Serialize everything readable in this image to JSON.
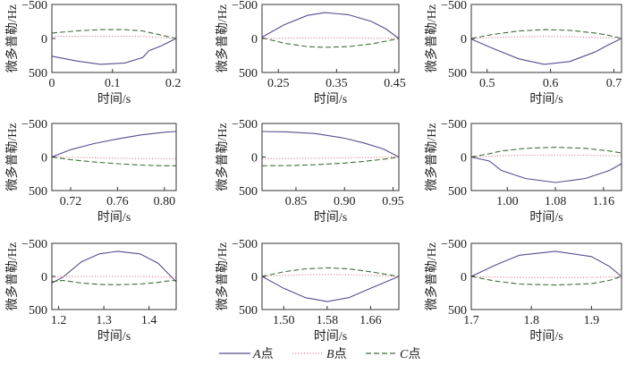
{
  "chart_data": {
    "type": "line",
    "ylabel": "微多普勒/Hz",
    "xlabel": "时间/s",
    "yticks": [
      -500,
      0,
      500
    ],
    "ytick_labels": [
      "−500",
      "0",
      "500"
    ],
    "ylim": [
      -500,
      500
    ],
    "y_inverted": true,
    "grid": false,
    "legend": {
      "placement": "bottom-center",
      "entries": [
        {
          "label": "A点",
          "italic": "A",
          "suffix": "点",
          "color": "#5b4a8f",
          "style": "solid"
        },
        {
          "label": "B点",
          "italic": "B",
          "suffix": "点",
          "color": "#d9808f",
          "style": "dotted"
        },
        {
          "label": "C点",
          "italic": "C",
          "suffix": "点",
          "color": "#3f6f3a",
          "style": "dashed"
        }
      ]
    },
    "panels": [
      {
        "xlim": [
          0,
          0.205
        ],
        "xticks": [
          0,
          0.1,
          0.2
        ],
        "xtick_labels": [
          "0",
          "0.1",
          "0.2"
        ],
        "x": [
          0,
          0.04,
          0.08,
          0.12,
          0.15,
          0.16,
          0.18,
          0.205
        ],
        "A": [
          260,
          330,
          380,
          360,
          280,
          180,
          110,
          0
        ],
        "B": [
          -30,
          -30,
          -30,
          -30,
          -30,
          -25,
          -15,
          0
        ],
        "C": [
          -80,
          -110,
          -130,
          -130,
          -110,
          -90,
          -50,
          0
        ]
      },
      {
        "xlim": [
          0.222,
          0.457
        ],
        "xticks": [
          0.25,
          0.35,
          0.45
        ],
        "xtick_labels": [
          "0.25",
          "0.35",
          "0.45"
        ],
        "x": [
          0.222,
          0.26,
          0.3,
          0.33,
          0.37,
          0.41,
          0.435,
          0.457
        ],
        "A": [
          -20,
          -200,
          -340,
          -380,
          -350,
          -250,
          -140,
          0
        ],
        "B": [
          0,
          -5,
          -8,
          -10,
          -8,
          -5,
          -2,
          0
        ],
        "C": [
          -10,
          70,
          120,
          130,
          120,
          80,
          40,
          0
        ]
      },
      {
        "xlim": [
          0.475,
          0.712
        ],
        "xticks": [
          0.5,
          0.6,
          0.7
        ],
        "xtick_labels": [
          "0.5",
          "0.6",
          "0.7"
        ],
        "x": [
          0.475,
          0.51,
          0.55,
          0.59,
          0.63,
          0.67,
          0.69,
          0.712
        ],
        "A": [
          10,
          150,
          300,
          380,
          340,
          200,
          100,
          0
        ],
        "B": [
          0,
          -15,
          -25,
          -30,
          -25,
          -15,
          -10,
          0
        ],
        "C": [
          0,
          -60,
          -110,
          -130,
          -120,
          -80,
          -50,
          0
        ]
      },
      {
        "xlim": [
          0.704,
          0.81
        ],
        "xticks": [
          0.72,
          0.76,
          0.8
        ],
        "xtick_labels": [
          "0.72",
          "0.76",
          "0.80"
        ],
        "x": [
          0.704,
          0.72,
          0.74,
          0.76,
          0.78,
          0.8,
          0.81
        ],
        "A": [
          0,
          -110,
          -200,
          -270,
          -330,
          -370,
          -380
        ],
        "B": [
          0,
          5,
          12,
          18,
          22,
          25,
          25
        ],
        "C": [
          0,
          40,
          75,
          100,
          120,
          130,
          130
        ]
      },
      {
        "xlim": [
          0.815,
          0.956
        ],
        "xticks": [
          0.85,
          0.9,
          0.95
        ],
        "xtick_labels": [
          "0.85",
          "0.90",
          "0.95"
        ],
        "x": [
          0.815,
          0.84,
          0.87,
          0.9,
          0.92,
          0.94,
          0.956
        ],
        "A": [
          -380,
          -375,
          -350,
          -280,
          -210,
          -120,
          0
        ],
        "B": [
          25,
          22,
          18,
          12,
          8,
          5,
          0
        ],
        "C": [
          130,
          128,
          115,
          90,
          65,
          35,
          0
        ]
      },
      {
        "xlim": [
          0.94,
          1.19
        ],
        "xticks": [
          1.0,
          1.08,
          1.16
        ],
        "xtick_labels": [
          "1.00",
          "1.08",
          "1.16"
        ],
        "x": [
          0.94,
          0.97,
          0.99,
          1.03,
          1.08,
          1.13,
          1.17,
          1.19
        ],
        "A": [
          0,
          60,
          200,
          320,
          380,
          320,
          200,
          100
        ],
        "B": [
          0,
          -10,
          -20,
          -28,
          -30,
          -28,
          -20,
          -15
        ],
        "C": [
          0,
          -50,
          -90,
          -130,
          -145,
          -130,
          -90,
          -60
        ]
      },
      {
        "xlim": [
          1.185,
          1.46
        ],
        "xticks": [
          1.2,
          1.3,
          1.4
        ],
        "xtick_labels": [
          "1.2",
          "1.3",
          "1.4"
        ],
        "x": [
          1.185,
          1.21,
          1.25,
          1.29,
          1.33,
          1.38,
          1.42,
          1.44,
          1.46
        ],
        "A": [
          100,
          10,
          -220,
          -340,
          -380,
          -340,
          -200,
          -60,
          80
        ],
        "B": [
          10,
          5,
          0,
          0,
          0,
          0,
          5,
          10,
          15
        ],
        "C": [
          80,
          60,
          100,
          120,
          125,
          115,
          90,
          70,
          60
        ]
      },
      {
        "xlim": [
          1.46,
          1.712
        ],
        "xticks": [
          1.5,
          1.58,
          1.66
        ],
        "xtick_labels": [
          "1.50",
          "1.58",
          "1.66"
        ],
        "x": [
          1.46,
          1.5,
          1.54,
          1.58,
          1.62,
          1.66,
          1.712
        ],
        "A": [
          0,
          180,
          320,
          380,
          320,
          180,
          0
        ],
        "B": [
          0,
          -15,
          -25,
          -30,
          -25,
          -15,
          0
        ],
        "C": [
          0,
          -70,
          -115,
          -130,
          -115,
          -70,
          0
        ]
      },
      {
        "xlim": [
          1.7,
          1.95
        ],
        "xticks": [
          1.7,
          1.8,
          1.9
        ],
        "xtick_labels": [
          "1.7",
          "1.8",
          "1.9"
        ],
        "x": [
          1.7,
          1.74,
          1.78,
          1.84,
          1.9,
          1.93,
          1.95
        ],
        "A": [
          0,
          -170,
          -320,
          -380,
          -300,
          -150,
          0
        ],
        "B": [
          0,
          10,
          15,
          18,
          15,
          8,
          0
        ],
        "C": [
          0,
          70,
          115,
          130,
          110,
          60,
          0
        ]
      }
    ]
  }
}
